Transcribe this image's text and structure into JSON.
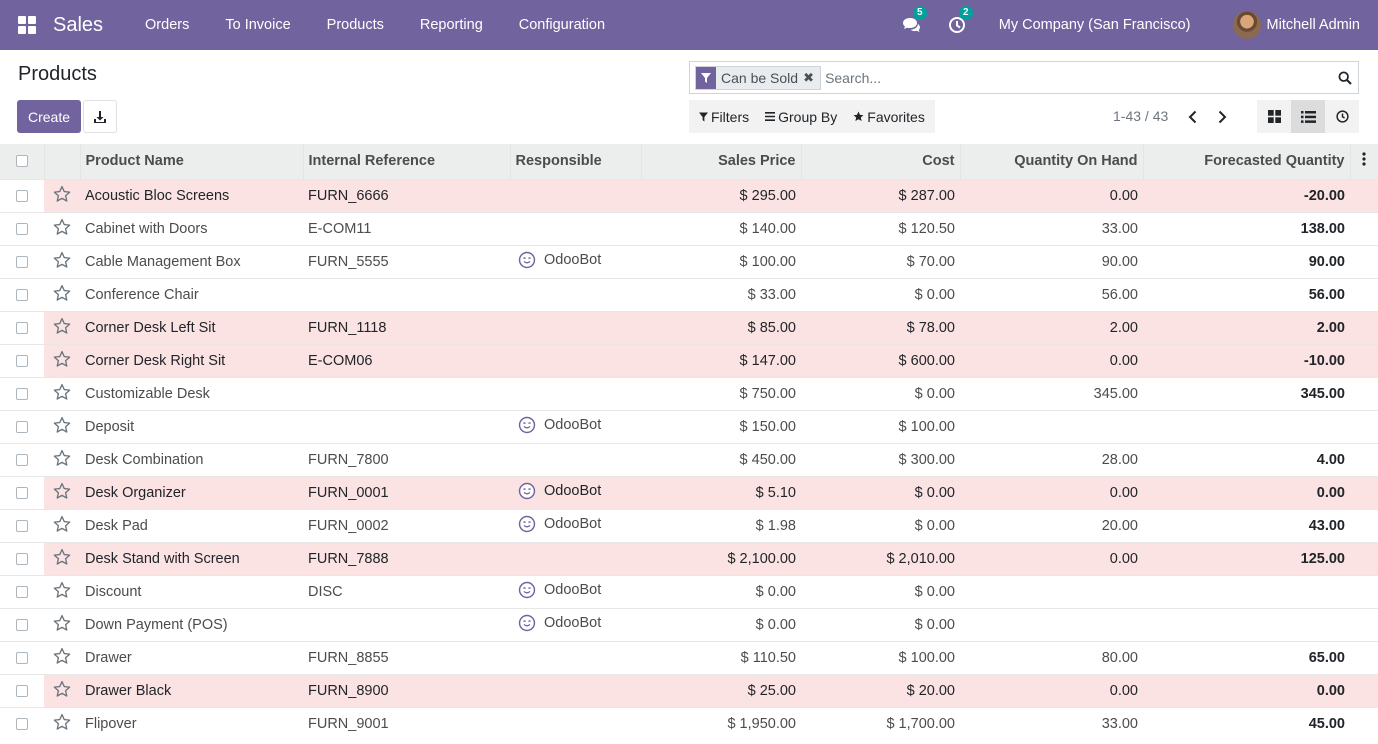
{
  "navbar": {
    "brand": "Sales",
    "menu": [
      "Orders",
      "To Invoice",
      "Products",
      "Reporting",
      "Configuration"
    ],
    "messages_count": "5",
    "activities_count": "2",
    "company": "My Company (San Francisco)",
    "user": "Mitchell Admin"
  },
  "control": {
    "title": "Products",
    "create_label": "Create",
    "facet_label": "Can be Sold",
    "search_placeholder": "Search...",
    "filters_label": "Filters",
    "groupby_label": "Group By",
    "favorites_label": "Favorites",
    "pager": "1-43 / 43"
  },
  "table": {
    "columns": [
      "Product Name",
      "Internal Reference",
      "Responsible",
      "Sales Price",
      "Cost",
      "Quantity On Hand",
      "Forecasted Quantity"
    ],
    "rows": [
      {
        "name": "Acoustic Bloc Screens",
        "ref": "FURN_6666",
        "resp": "",
        "price": "$ 295.00",
        "cost": "$ 287.00",
        "onhand": "0.00",
        "forecast": "-20.00",
        "danger": true,
        "neg": true
      },
      {
        "name": "Cabinet with Doors",
        "ref": "E-COM11",
        "resp": "",
        "price": "$ 140.00",
        "cost": "$ 120.50",
        "onhand": "33.00",
        "forecast": "138.00",
        "danger": false,
        "neg": false
      },
      {
        "name": "Cable Management Box",
        "ref": "FURN_5555",
        "resp": "OdooBot",
        "price": "$ 100.00",
        "cost": "$ 70.00",
        "onhand": "90.00",
        "forecast": "90.00",
        "danger": false,
        "neg": false
      },
      {
        "name": "Conference Chair",
        "ref": "",
        "resp": "",
        "price": "$ 33.00",
        "cost": "$ 0.00",
        "onhand": "56.00",
        "forecast": "56.00",
        "danger": false,
        "neg": false
      },
      {
        "name": "Corner Desk Left Sit",
        "ref": "FURN_1118",
        "resp": "",
        "price": "$ 85.00",
        "cost": "$ 78.00",
        "onhand": "2.00",
        "forecast": "2.00",
        "danger": true,
        "neg": false
      },
      {
        "name": "Corner Desk Right Sit",
        "ref": "E-COM06",
        "resp": "",
        "price": "$ 147.00",
        "cost": "$ 600.00",
        "onhand": "0.00",
        "forecast": "-10.00",
        "danger": true,
        "neg": true
      },
      {
        "name": "Customizable Desk",
        "ref": "",
        "resp": "",
        "price": "$ 750.00",
        "cost": "$ 0.00",
        "onhand": "345.00",
        "forecast": "345.00",
        "danger": false,
        "neg": false
      },
      {
        "name": "Deposit",
        "ref": "",
        "resp": "OdooBot",
        "price": "$ 150.00",
        "cost": "$ 100.00",
        "onhand": "",
        "forecast": "",
        "danger": false,
        "neg": false
      },
      {
        "name": "Desk Combination",
        "ref": "FURN_7800",
        "resp": "",
        "price": "$ 450.00",
        "cost": "$ 300.00",
        "onhand": "28.00",
        "forecast": "4.00",
        "danger": false,
        "neg": false
      },
      {
        "name": "Desk Organizer",
        "ref": "FURN_0001",
        "resp": "OdooBot",
        "price": "$ 5.10",
        "cost": "$ 0.00",
        "onhand": "0.00",
        "forecast": "0.00",
        "danger": true,
        "neg": false
      },
      {
        "name": "Desk Pad",
        "ref": "FURN_0002",
        "resp": "OdooBot",
        "price": "$ 1.98",
        "cost": "$ 0.00",
        "onhand": "20.00",
        "forecast": "43.00",
        "danger": false,
        "neg": false
      },
      {
        "name": "Desk Stand with Screen",
        "ref": "FURN_7888",
        "resp": "",
        "price": "$ 2,100.00",
        "cost": "$ 2,010.00",
        "onhand": "0.00",
        "forecast": "125.00",
        "danger": true,
        "neg": false
      },
      {
        "name": "Discount",
        "ref": "DISC",
        "resp": "OdooBot",
        "price": "$ 0.00",
        "cost": "$ 0.00",
        "onhand": "",
        "forecast": "",
        "danger": false,
        "neg": false
      },
      {
        "name": "Down Payment (POS)",
        "ref": "",
        "resp": "OdooBot",
        "price": "$ 0.00",
        "cost": "$ 0.00",
        "onhand": "",
        "forecast": "",
        "danger": false,
        "neg": false
      },
      {
        "name": "Drawer",
        "ref": "FURN_8855",
        "resp": "",
        "price": "$ 110.50",
        "cost": "$ 100.00",
        "onhand": "80.00",
        "forecast": "65.00",
        "danger": false,
        "neg": false
      },
      {
        "name": "Drawer Black",
        "ref": "FURN_8900",
        "resp": "",
        "price": "$ 25.00",
        "cost": "$ 20.00",
        "onhand": "0.00",
        "forecast": "0.00",
        "danger": true,
        "neg": false
      },
      {
        "name": "Flipover",
        "ref": "FURN_9001",
        "resp": "",
        "price": "$ 1,950.00",
        "cost": "$ 1,700.00",
        "onhand": "33.00",
        "forecast": "45.00",
        "danger": false,
        "neg": false
      }
    ]
  },
  "colors": {
    "brand": "#71639e",
    "danger_row": "#fbe3e3",
    "negative": "#d23f3a"
  }
}
